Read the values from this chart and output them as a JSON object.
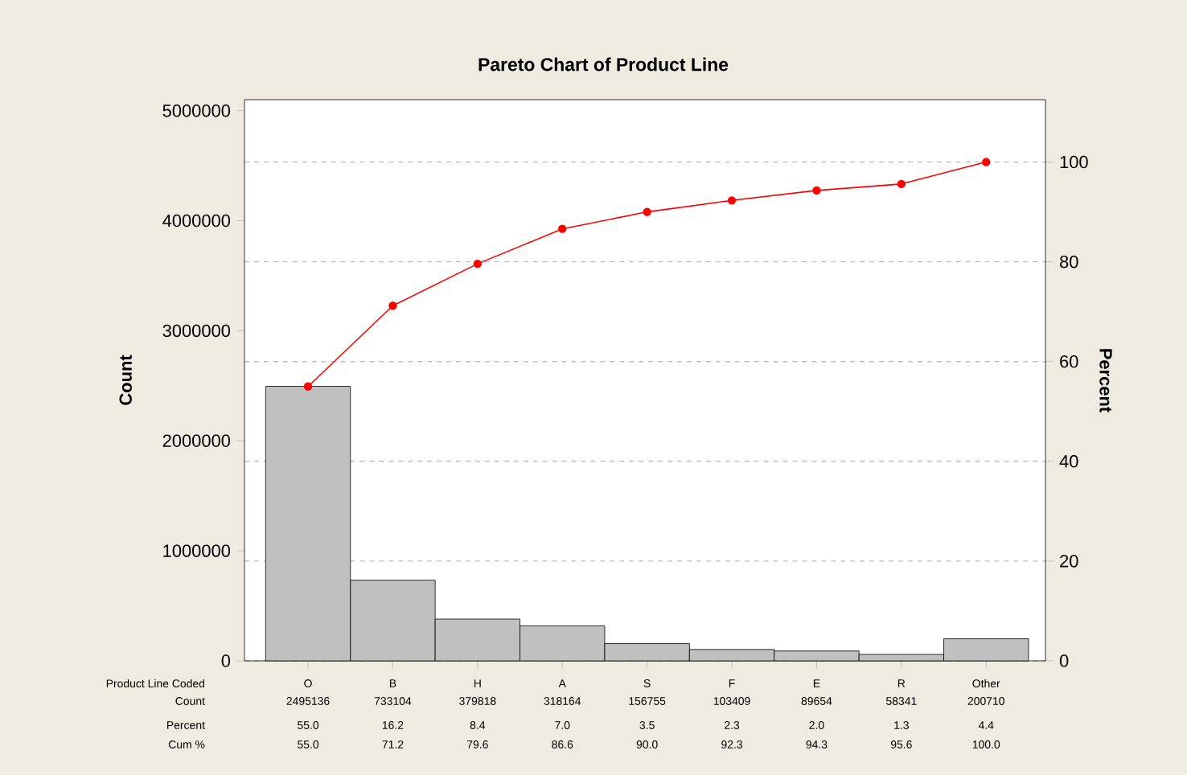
{
  "chart_data": {
    "type": "bar",
    "title": "Pareto Chart of Product Line",
    "xlabel": "Product Line Coded",
    "ylabel": "Count",
    "y2label": "Percent",
    "categories": [
      "O",
      "B",
      "H",
      "A",
      "S",
      "F",
      "E",
      "R",
      "Other"
    ],
    "series": [
      {
        "color": "#c0c0c0",
        "values": [
          2495136,
          733104,
          379818,
          318164,
          156755,
          103409,
          89654,
          58341,
          200710
        ],
        "value_labels": [
          "2495136",
          "733104",
          "379818",
          "318164",
          "156755",
          "103409",
          "89654",
          "58341",
          "200710"
        ]
      },
      {
        "type": "line",
        "axis": "y2",
        "color": "#ff0000",
        "values": [
          55.0,
          71.2,
          79.6,
          86.6,
          90.0,
          92.3,
          94.3,
          95.6,
          100.0
        ],
        "value_labels": [
          "55.0",
          "71.2",
          "79.6",
          "86.6",
          "90.0",
          "92.3",
          "94.3",
          "95.6",
          "100.0"
        ]
      }
    ],
    "ylim": [
      0,
      5100000
    ],
    "yticks": [
      0,
      1000000,
      2000000,
      3000000,
      4000000,
      5000000
    ],
    "y2lim": [
      0,
      112.5
    ],
    "y2ticks": [
      0,
      20,
      40,
      60,
      80,
      100
    ],
    "grid": true,
    "marker": "circle",
    "annotations": [
      "Count",
      "Percent",
      "Cum %",
      "55.0",
      "16.2",
      "8.4",
      "7.0",
      "3.5",
      "2.3",
      "2.0",
      "1.3",
      "4.4"
    ]
  }
}
